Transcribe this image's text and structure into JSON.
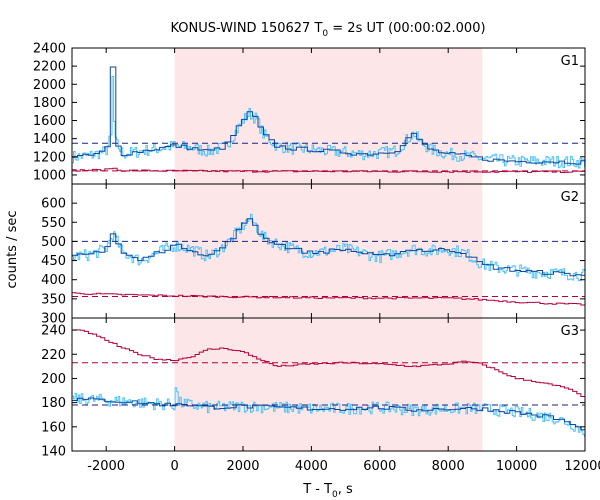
{
  "chart_data": {
    "type": "line",
    "title": {
      "prefix": "KONUS-WIND 150627 T",
      "sub": "0",
      "suffix": " = 2s UT (00:00:02.000)"
    },
    "xlabel": {
      "prefix": "T - T",
      "sub": "0",
      "suffix": ", s"
    },
    "ylabel": "counts / sec",
    "xlim": [
      -3000,
      12000
    ],
    "xticks": [
      -2000,
      0,
      2000,
      4000,
      6000,
      8000,
      10000,
      12000
    ],
    "shaded_interval": [
      0,
      9000
    ],
    "colors": {
      "shade": "#fde6e8",
      "rate_light": "#4fc3f7",
      "rate_dark": "#0d47a1",
      "background": "#b0003a",
      "background_fit": "#b0003a",
      "rate_fit": "#1a237e"
    },
    "panels": [
      {
        "name": "G1",
        "ylim": [
          900,
          2400
        ],
        "yticks": [
          1000,
          1200,
          1400,
          1600,
          1800,
          2000,
          2200,
          2400
        ],
        "rate_fit_level": 1350,
        "background_fit_level": 1045,
        "rate": {
          "x": [
            -3000,
            -2500,
            -2000,
            -1850,
            -1800,
            -1750,
            -1500,
            -1000,
            -500,
            0,
            500,
            1000,
            1500,
            1800,
            2000,
            2200,
            2400,
            2600,
            3000,
            3500,
            4000,
            4500,
            5000,
            5500,
            6000,
            6500,
            6800,
            7000,
            7200,
            7500,
            8000,
            8500,
            9000,
            9500,
            10000,
            11000,
            12000
          ],
          "y": [
            1200,
            1210,
            1260,
            1420,
            2180,
            1380,
            1230,
            1260,
            1290,
            1320,
            1300,
            1260,
            1310,
            1480,
            1600,
            1680,
            1620,
            1450,
            1320,
            1290,
            1280,
            1260,
            1250,
            1230,
            1240,
            1270,
            1390,
            1460,
            1360,
            1280,
            1230,
            1210,
            1180,
            1160,
            1150,
            1150,
            1140
          ]
        },
        "background": {
          "x": [
            -3000,
            -2000,
            -1800,
            -1600,
            0,
            2000,
            4000,
            6000,
            8000,
            10000,
            12000
          ],
          "y": [
            1050,
            1055,
            1080,
            1050,
            1045,
            1040,
            1040,
            1038,
            1038,
            1035,
            1035
          ]
        }
      },
      {
        "name": "G2",
        "ylim": [
          300,
          650
        ],
        "yticks": [
          300,
          350,
          400,
          450,
          500,
          550,
          600
        ],
        "rate_fit_level": 500,
        "background_fit_level": 356,
        "rate": {
          "x": [
            -3000,
            -2500,
            -2000,
            -1800,
            -1500,
            -1000,
            -500,
            0,
            500,
            1000,
            1500,
            1800,
            2000,
            2200,
            2400,
            2600,
            3000,
            3500,
            4000,
            4500,
            5000,
            5500,
            6000,
            6500,
            7000,
            7500,
            8000,
            8500,
            9000,
            9500,
            10000,
            10500,
            11000,
            11500,
            12000
          ],
          "y": [
            460,
            465,
            480,
            520,
            470,
            450,
            470,
            490,
            480,
            460,
            490,
            520,
            540,
            560,
            540,
            510,
            495,
            480,
            470,
            475,
            480,
            470,
            460,
            470,
            480,
            475,
            480,
            470,
            440,
            430,
            425,
            420,
            418,
            415,
            412
          ]
        },
        "background": {
          "x": [
            -3000,
            -2000,
            0,
            2000,
            4000,
            6000,
            8000,
            9000,
            10000,
            11000,
            12000
          ],
          "y": [
            365,
            362,
            358,
            355,
            353,
            352,
            352,
            348,
            342,
            338,
            335
          ]
        }
      },
      {
        "name": "G3",
        "ylim": [
          140,
          250
        ],
        "yticks": [
          140,
          160,
          180,
          200,
          220,
          240
        ],
        "rate_fit_level": 178,
        "background_fit_level": 213,
        "rate": {
          "x": [
            -3000,
            -2000,
            -1000,
            0,
            50,
            100,
            500,
            1000,
            2000,
            3000,
            4000,
            5000,
            6000,
            7000,
            8000,
            9000,
            10000,
            11000,
            11500,
            12000
          ],
          "y": [
            183,
            182,
            180,
            178,
            198,
            180,
            178,
            176,
            177,
            176,
            175,
            175,
            176,
            174,
            175,
            175,
            172,
            168,
            164,
            156
          ]
        },
        "background": {
          "x": [
            -3000,
            -2500,
            -2000,
            -1500,
            -1000,
            -500,
            0,
            500,
            1000,
            1500,
            2000,
            2500,
            3000,
            4000,
            5000,
            6000,
            7000,
            8000,
            8500,
            9000,
            9500,
            10000,
            10500,
            11000,
            11500,
            12000
          ],
          "y": [
            241,
            238,
            232,
            225,
            220,
            216,
            215,
            218,
            224,
            225,
            222,
            216,
            210,
            212,
            213,
            212,
            210,
            212,
            214,
            212,
            206,
            200,
            198,
            195,
            192,
            184
          ]
        }
      }
    ]
  }
}
